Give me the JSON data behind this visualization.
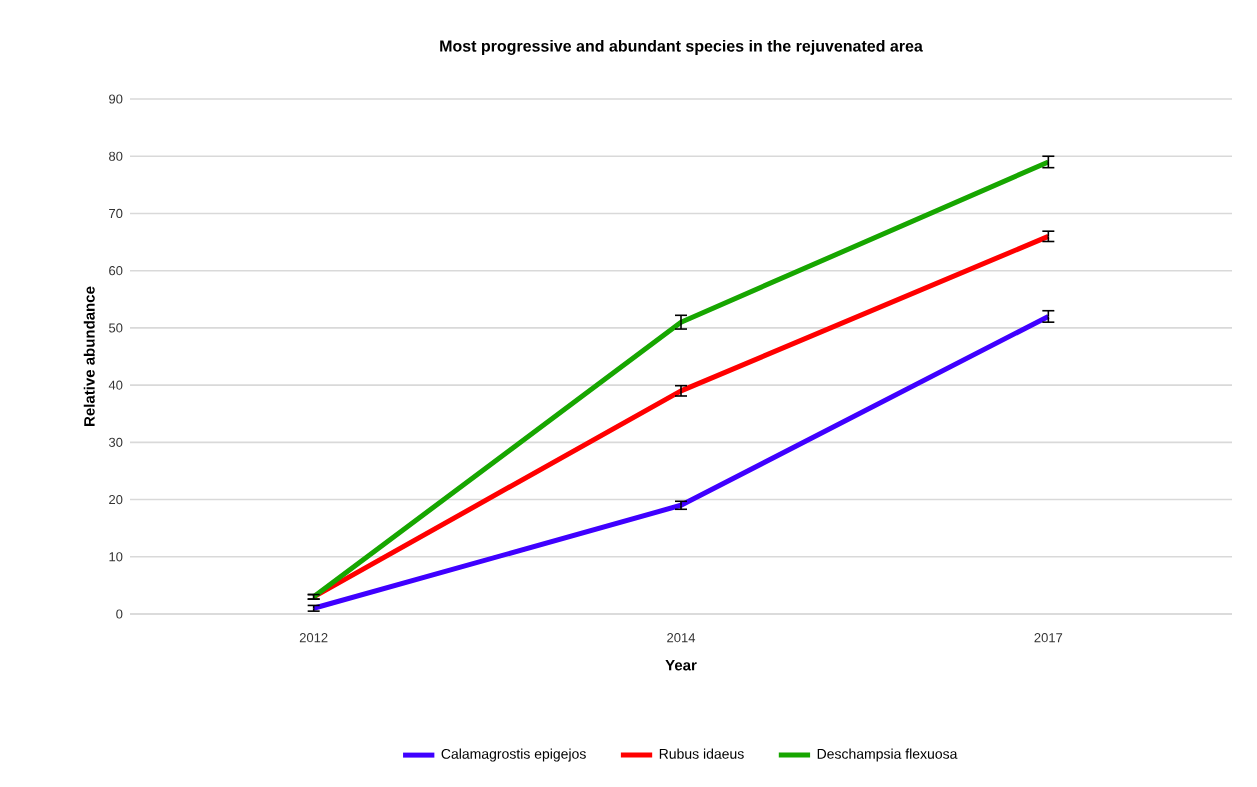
{
  "chart_data": {
    "type": "line",
    "title": "Most progressive and abundant species in the rejuvenated area",
    "xlabel": "Year",
    "ylabel": "Relative abundance",
    "categories": [
      "2012",
      "2014",
      "2017"
    ],
    "series": [
      {
        "name": "Calamagrostis epigejos",
        "color": "#3f00ff",
        "values": [
          1,
          19,
          52
        ],
        "errors": [
          0.5,
          0.7,
          1
        ]
      },
      {
        "name": "Rubus idaeus",
        "color": "#ff0000",
        "values": [
          3,
          39,
          66
        ],
        "errors": [
          0.4,
          0.9,
          0.9
        ]
      },
      {
        "name": "Deschampsia flexuosa",
        "color": "#17a600",
        "values": [
          3,
          51,
          79
        ],
        "errors": [
          0.4,
          1.2,
          1
        ]
      }
    ],
    "ylim": [
      0,
      90
    ],
    "yticks": [
      0,
      10,
      20,
      30,
      40,
      50,
      60,
      70,
      80,
      90
    ],
    "grid": "y",
    "legend": "bottom",
    "marker": "none",
    "line_style": "solid"
  }
}
